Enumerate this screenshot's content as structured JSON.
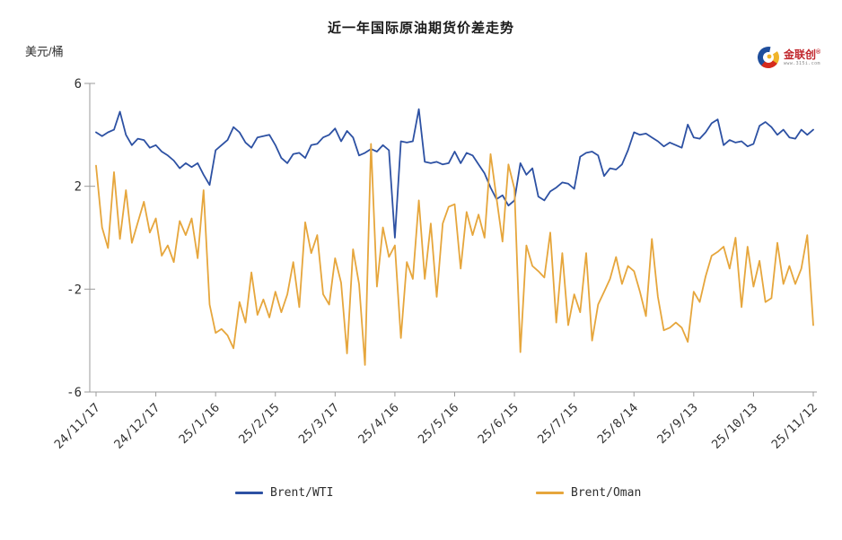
{
  "title": "近一年国际原油期货价差走势",
  "y_unit": "美元/桶",
  "logo": {
    "brand": "金联创",
    "reg": "®",
    "site": "www.315i.com"
  },
  "chart_data": {
    "type": "line",
    "title": "近一年国际原油期货价差走势",
    "ylabel": "美元/桶",
    "ylim": [
      -6,
      6
    ],
    "y_ticks": [
      6,
      2,
      -2,
      -6
    ],
    "grid": false,
    "legend_position": "bottom",
    "x_labels": [
      "24/11/17",
      "24/12/17",
      "25/1/16",
      "25/2/15",
      "25/3/17",
      "25/4/16",
      "25/5/16",
      "25/6/15",
      "25/7/15",
      "25/8/14",
      "25/9/13",
      "25/10/13",
      "25/11/12"
    ],
    "series": [
      {
        "name": "Brent/WTI",
        "color": "#2d51a3",
        "values": [
          4.1,
          3.95,
          4.1,
          4.2,
          4.9,
          4.0,
          3.6,
          3.85,
          3.8,
          3.5,
          3.6,
          3.35,
          3.2,
          3.0,
          2.7,
          2.9,
          2.75,
          2.9,
          2.45,
          2.05,
          3.4,
          3.6,
          3.8,
          4.3,
          4.1,
          3.7,
          3.5,
          3.9,
          3.95,
          4.0,
          3.6,
          3.1,
          2.9,
          3.25,
          3.3,
          3.1,
          3.6,
          3.65,
          3.9,
          4.0,
          4.25,
          3.75,
          4.15,
          3.9,
          3.2,
          3.3,
          3.45,
          3.35,
          3.6,
          3.4,
          0.0,
          3.75,
          3.7,
          3.75,
          5.0,
          2.95,
          2.9,
          2.95,
          2.85,
          2.9,
          3.35,
          2.9,
          3.3,
          3.2,
          2.85,
          2.5,
          1.95,
          1.5,
          1.65,
          1.25,
          1.45,
          2.9,
          2.45,
          2.7,
          1.6,
          1.45,
          1.8,
          1.95,
          2.15,
          2.1,
          1.9,
          3.15,
          3.3,
          3.35,
          3.2,
          2.4,
          2.7,
          2.65,
          2.85,
          3.4,
          4.1,
          4.0,
          4.05,
          3.9,
          3.75,
          3.55,
          3.7,
          3.6,
          3.5,
          4.4,
          3.9,
          3.85,
          4.1,
          4.45,
          4.6,
          3.6,
          3.8,
          3.7,
          3.75,
          3.55,
          3.65,
          4.35,
          4.5,
          4.3,
          4.0,
          4.2,
          3.9,
          3.85,
          4.2,
          4.0,
          4.2
        ]
      },
      {
        "name": "Brent/Oman",
        "color": "#e6a63c",
        "values": [
          2.8,
          0.4,
          -0.4,
          2.55,
          -0.05,
          1.85,
          -0.2,
          0.6,
          1.4,
          0.2,
          0.75,
          -0.7,
          -0.3,
          -0.95,
          0.65,
          0.1,
          0.75,
          -0.8,
          1.85,
          -2.6,
          -3.7,
          -3.55,
          -3.8,
          -4.3,
          -2.5,
          -3.3,
          -1.35,
          -3.0,
          -2.4,
          -3.1,
          -2.1,
          -2.9,
          -2.2,
          -0.95,
          -2.7,
          0.6,
          -0.6,
          0.1,
          -2.2,
          -2.6,
          -0.8,
          -1.75,
          -4.5,
          -0.45,
          -1.8,
          -4.95,
          3.65,
          -1.9,
          0.4,
          -0.75,
          -0.3,
          -3.9,
          -0.95,
          -1.6,
          1.45,
          -1.6,
          0.55,
          -2.3,
          0.55,
          1.2,
          1.3,
          -1.2,
          1.0,
          0.1,
          0.9,
          0.0,
          3.25,
          1.55,
          -0.15,
          2.85,
          1.9,
          -4.45,
          -0.3,
          -1.1,
          -1.3,
          -1.55,
          0.2,
          -3.3,
          -0.6,
          -3.4,
          -2.2,
          -2.9,
          -0.6,
          -4.0,
          -2.6,
          -2.1,
          -1.6,
          -0.75,
          -1.8,
          -1.1,
          -1.3,
          -2.1,
          -3.05,
          -0.05,
          -2.3,
          -3.6,
          -3.5,
          -3.3,
          -3.5,
          -4.05,
          -2.1,
          -2.5,
          -1.5,
          -0.7,
          -0.55,
          -0.35,
          -1.2,
          0.0,
          -2.7,
          -0.35,
          -1.9,
          -0.9,
          -2.5,
          -2.35,
          -0.2,
          -1.8,
          -1.1,
          -1.8,
          -1.2,
          0.1,
          -3.4
        ]
      }
    ]
  }
}
